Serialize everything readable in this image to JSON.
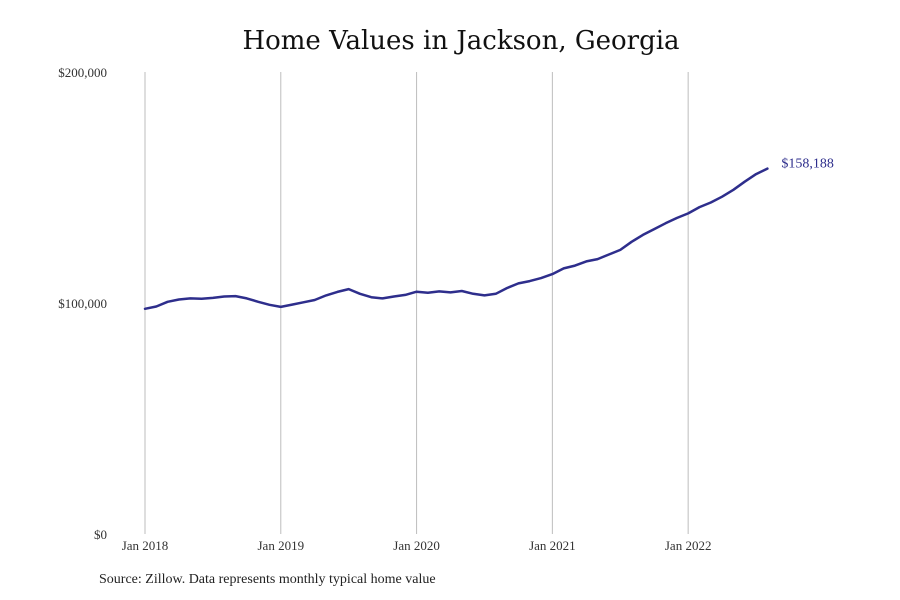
{
  "chart_data": {
    "type": "line",
    "title": "Home Values in Jackson, Georgia",
    "source": "Source: Zillow. Data represents monthly typical home value",
    "xlabel": "",
    "ylabel": "",
    "ylim": [
      0,
      200000
    ],
    "y_ticks": [
      {
        "value": 0,
        "label": "$0"
      },
      {
        "value": 100000,
        "label": "$100,000"
      },
      {
        "value": 200000,
        "label": "$200,000"
      }
    ],
    "x_ticks": [
      {
        "value": "2018-01",
        "label": "Jan 2018"
      },
      {
        "value": "2019-01",
        "label": "Jan 2019"
      },
      {
        "value": "2020-01",
        "label": "Jan 2020"
      },
      {
        "value": "2021-01",
        "label": "Jan 2021"
      },
      {
        "value": "2022-01",
        "label": "Jan 2022"
      }
    ],
    "xlim": [
      "2018-01",
      "2022-10"
    ],
    "grid": "vertical",
    "end_label": "$158,188",
    "series": [
      {
        "color": "#2e2e8c",
        "points": [
          [
            "2018-01",
            97500
          ],
          [
            "2018-02",
            98500
          ],
          [
            "2018-03",
            100500
          ],
          [
            "2018-04",
            101500
          ],
          [
            "2018-05",
            102000
          ],
          [
            "2018-06",
            101800
          ],
          [
            "2018-07",
            102200
          ],
          [
            "2018-08",
            102800
          ],
          [
            "2018-09",
            103000
          ],
          [
            "2018-10",
            102000
          ],
          [
            "2018-11",
            100500
          ],
          [
            "2018-12",
            99200
          ],
          [
            "2019-01",
            98300
          ],
          [
            "2019-02",
            99300
          ],
          [
            "2019-03",
            100300
          ],
          [
            "2019-04",
            101300
          ],
          [
            "2019-05",
            103300
          ],
          [
            "2019-06",
            104800
          ],
          [
            "2019-07",
            106000
          ],
          [
            "2019-08",
            104000
          ],
          [
            "2019-09",
            102500
          ],
          [
            "2019-10",
            102000
          ],
          [
            "2019-11",
            102800
          ],
          [
            "2019-12",
            103500
          ],
          [
            "2020-01",
            104900
          ],
          [
            "2020-02",
            104400
          ],
          [
            "2020-03",
            105000
          ],
          [
            "2020-04",
            104600
          ],
          [
            "2020-05",
            105200
          ],
          [
            "2020-06",
            104000
          ],
          [
            "2020-07",
            103300
          ],
          [
            "2020-08",
            104000
          ],
          [
            "2020-09",
            106500
          ],
          [
            "2020-10",
            108500
          ],
          [
            "2020-11",
            109500
          ],
          [
            "2020-12",
            110800
          ],
          [
            "2021-01",
            112500
          ],
          [
            "2021-02",
            115000
          ],
          [
            "2021-03",
            116200
          ],
          [
            "2021-04",
            118000
          ],
          [
            "2021-05",
            119000
          ],
          [
            "2021-06",
            121000
          ],
          [
            "2021-07",
            123000
          ],
          [
            "2021-08",
            126500
          ],
          [
            "2021-09",
            129500
          ],
          [
            "2021-10",
            132000
          ],
          [
            "2021-11",
            134500
          ],
          [
            "2021-12",
            136800
          ],
          [
            "2022-01",
            138800
          ],
          [
            "2022-02",
            141500
          ],
          [
            "2022-03",
            143500
          ],
          [
            "2022-04",
            146000
          ],
          [
            "2022-05",
            149000
          ],
          [
            "2022-06",
            152500
          ],
          [
            "2022-07",
            155800
          ],
          [
            "2022-08",
            158188
          ]
        ]
      }
    ]
  }
}
